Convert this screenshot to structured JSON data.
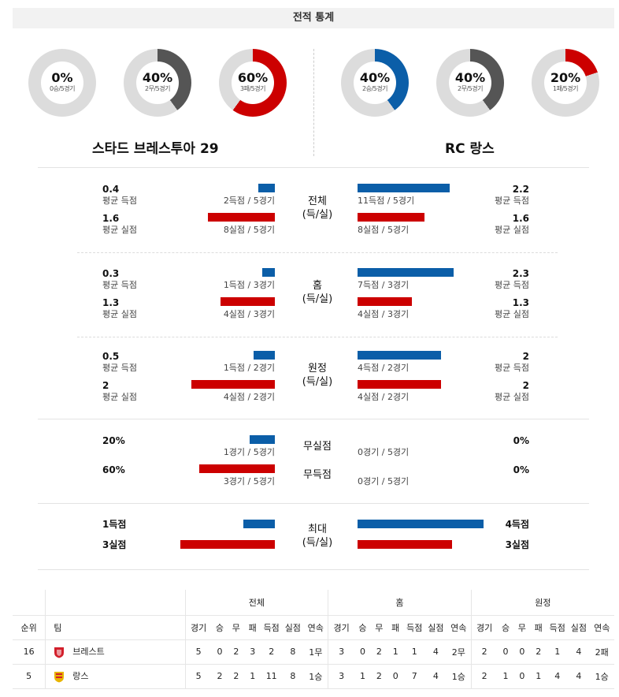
{
  "title": "전적 통계",
  "donuts": [
    {
      "pct": "0%",
      "sub": "0승/5경기",
      "percent": 0,
      "color": "#cc0000"
    },
    {
      "pct": "40%",
      "sub": "2무/5경기",
      "percent": 40,
      "color": "#555555"
    },
    {
      "pct": "60%",
      "sub": "3패/5경기",
      "percent": 60,
      "color": "#cc0000"
    },
    {
      "pct": "40%",
      "sub": "2승/5경기",
      "percent": 40,
      "color": "#0b5ea8"
    },
    {
      "pct": "40%",
      "sub": "2무/5경기",
      "percent": 40,
      "color": "#555555"
    },
    {
      "pct": "20%",
      "sub": "1패/5경기",
      "percent": 20,
      "color": "#cc0000"
    }
  ],
  "teams": {
    "home": "스타드 브레스투아 29",
    "away": "RC 랑스"
  },
  "sections": [
    {
      "label1": "전체",
      "label2": "(득/실)",
      "rows": [
        {
          "lval": "0.4",
          "llbl": "평균 득점",
          "lcnt": "2득점 / 5경기",
          "rval": "2.2",
          "rlbl": "평균 득점",
          "rcnt": "11득점 / 5경기",
          "lnum": 0.4,
          "rnum": 2.2,
          "color": "blue"
        },
        {
          "lval": "1.6",
          "llbl": "평균 실점",
          "lcnt": "8실점 / 5경기",
          "rval": "1.6",
          "rlbl": "평균 실점",
          "rcnt": "8실점 / 5경기",
          "lnum": 1.6,
          "rnum": 1.6,
          "color": "red"
        }
      ]
    },
    {
      "label1": "홈",
      "label2": "(득/실)",
      "rows": [
        {
          "lval": "0.3",
          "llbl": "평균 득점",
          "lcnt": "1득점 / 3경기",
          "rval": "2.3",
          "rlbl": "평균 득점",
          "rcnt": "7득점 / 3경기",
          "lnum": 0.3,
          "rnum": 2.3,
          "color": "blue"
        },
        {
          "lval": "1.3",
          "llbl": "평균 실점",
          "lcnt": "4실점 / 3경기",
          "rval": "1.3",
          "rlbl": "평균 실점",
          "rcnt": "4실점 / 3경기",
          "lnum": 1.3,
          "rnum": 1.3,
          "color": "red"
        }
      ]
    },
    {
      "label1": "원정",
      "label2": "(득/실)",
      "rows": [
        {
          "lval": "0.5",
          "llbl": "평균 득점",
          "lcnt": "1득점 / 2경기",
          "rval": "2",
          "rlbl": "평균 득점",
          "rcnt": "4득점 / 2경기",
          "lnum": 0.5,
          "rnum": 2,
          "color": "blue"
        },
        {
          "lval": "2",
          "llbl": "평균 실점",
          "lcnt": "4실점 / 2경기",
          "rval": "2",
          "rlbl": "평균 실점",
          "rcnt": "4실점 / 2경기",
          "lnum": 2,
          "rnum": 2,
          "color": "red"
        }
      ]
    }
  ],
  "cleansheet": {
    "rows": [
      {
        "label": "무실점",
        "lval": "20%",
        "lcnt": "1경기 / 5경기",
        "rval": "0%",
        "rcnt": "0경기 / 5경기",
        "lnum": 20,
        "rnum": 0,
        "color": "blue"
      },
      {
        "label": "무득점",
        "lval": "60%",
        "lcnt": "3경기 / 5경기",
        "rval": "0%",
        "rcnt": "0경기 / 5경기",
        "lnum": 60,
        "rnum": 0,
        "color": "red"
      }
    ]
  },
  "max": {
    "label1": "최대",
    "label2": "(득/실)",
    "rows": [
      {
        "lval": "1득점",
        "rval": "4득점",
        "lnum": 1,
        "rnum": 4,
        "color": "blue"
      },
      {
        "lval": "3실점",
        "rval": "3실점",
        "lnum": 3,
        "rnum": 3,
        "color": "red"
      }
    ]
  },
  "standings": {
    "groups": [
      "전체",
      "홈",
      "원정"
    ],
    "rank_header": "순위",
    "team_header": "팀",
    "cols": [
      "경기",
      "승",
      "무",
      "패",
      "득점",
      "실점",
      "연속"
    ],
    "rows": [
      {
        "rank": "16",
        "team": "브레스트",
        "logo_color": "#d21f2b",
        "overall": [
          "5",
          "0",
          "2",
          "3",
          "2",
          "8",
          "1무"
        ],
        "home": [
          "3",
          "0",
          "2",
          "1",
          "1",
          "4",
          "2무"
        ],
        "away": [
          "2",
          "0",
          "0",
          "2",
          "1",
          "4",
          "2패"
        ]
      },
      {
        "rank": "5",
        "team": "랑스",
        "logo_color": "#e8b400",
        "overall": [
          "5",
          "2",
          "2",
          "1",
          "11",
          "8",
          "1승"
        ],
        "home": [
          "3",
          "1",
          "2",
          "0",
          "7",
          "4",
          "1승"
        ],
        "away": [
          "2",
          "1",
          "0",
          "1",
          "4",
          "4",
          "1승"
        ]
      }
    ]
  }
}
